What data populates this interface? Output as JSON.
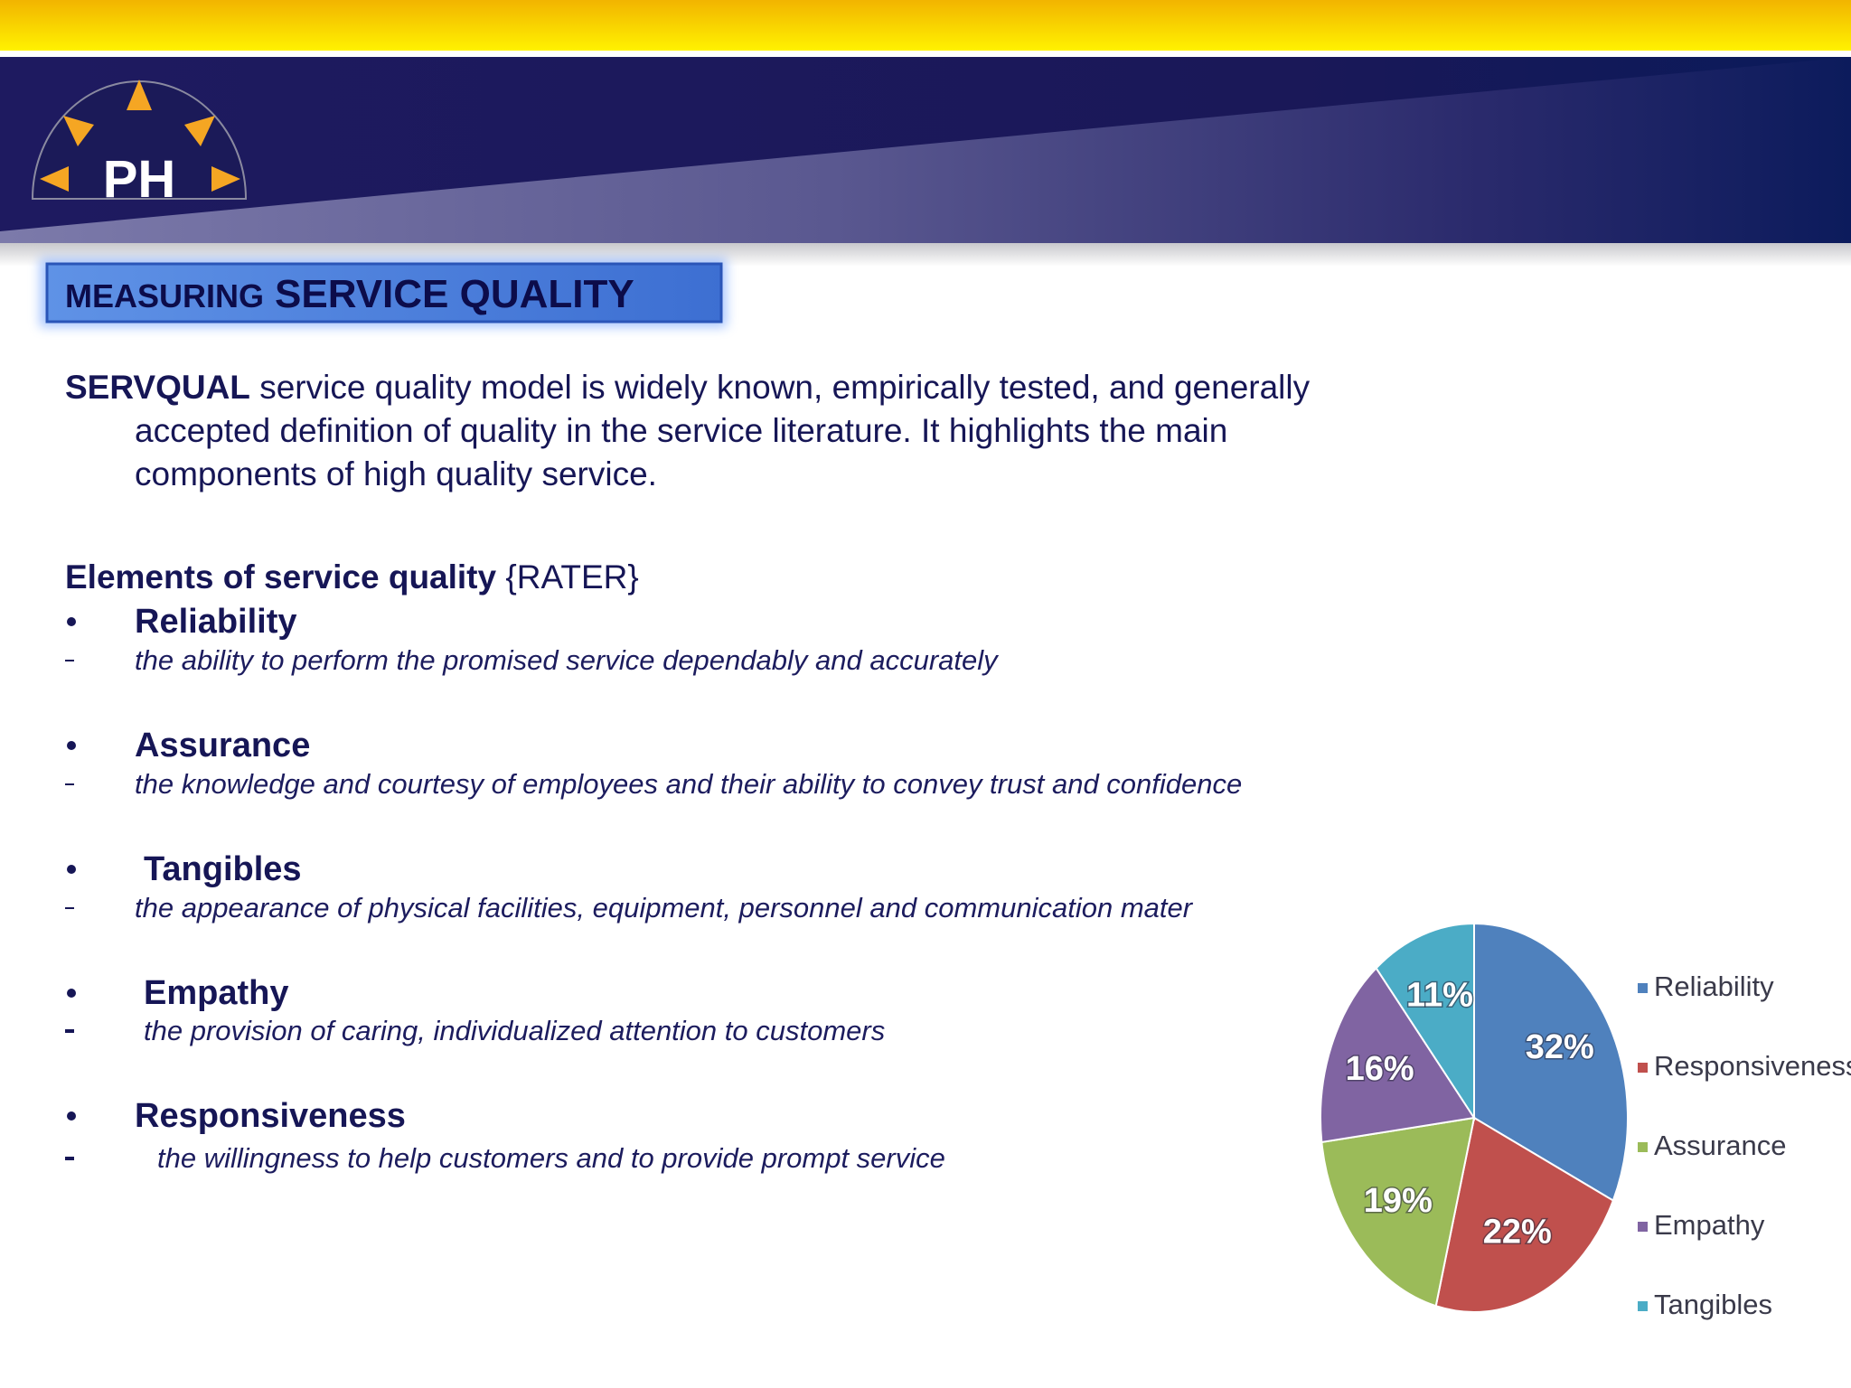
{
  "header": {
    "logo_text": "PH"
  },
  "title": {
    "small": "MEASURING",
    "large": "SERVICE QUALITY"
  },
  "intro": {
    "lead": "SERVQUAL",
    "lines": [
      " service quality model is widely known, empirically tested, and generally",
      "accepted definition of quality in the service literature. It highlights the main",
      "components of high quality service."
    ]
  },
  "elements": {
    "heading": "Elements of service quality",
    "tag": " {RATER}",
    "items": [
      {
        "name": "Reliability",
        "description": "the ability to perform the promised service dependably and accurately"
      },
      {
        "name": "Assurance",
        "description": "the knowledge and courtesy of employees and their ability to convey trust and confidence"
      },
      {
        "name": "Tangibles",
        "description": "the appearance of physical facilities, equipment, personnel and communication mater"
      },
      {
        "name": "Empathy",
        "description": "the provision of caring, individualized attention to customers"
      },
      {
        "name": "Responsiveness",
        "description": "the willingness to help customers and to provide prompt service"
      }
    ]
  },
  "chart_data": {
    "type": "pie",
    "categories": [
      "Reliability",
      "Responsiveness",
      "Assurance",
      "Empathy",
      "Tangibles"
    ],
    "values": [
      32,
      22,
      19,
      16,
      11
    ],
    "value_labels": [
      "32%",
      "22%",
      "19%",
      "16%",
      "11%"
    ],
    "colors": [
      "#4f81bd",
      "#c0504d",
      "#9bbb59",
      "#8064a2",
      "#4bacc6"
    ],
    "legend": "right"
  }
}
